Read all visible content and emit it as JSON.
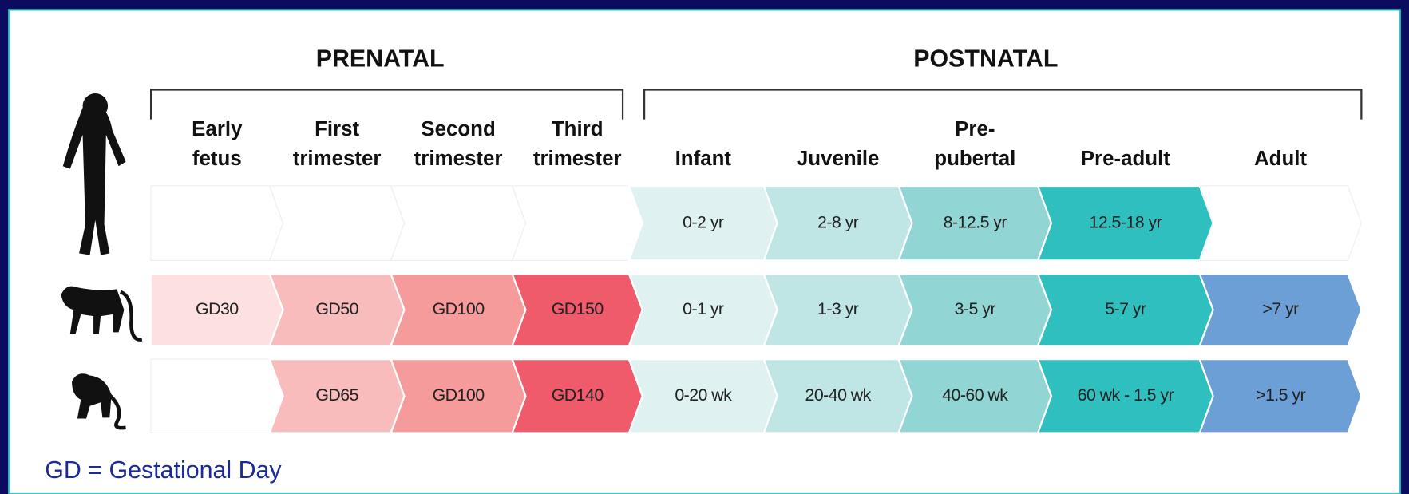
{
  "header": {
    "groups": [
      "PRENATAL",
      "POSTNATAL"
    ]
  },
  "columns": [
    [
      "Early",
      "fetus"
    ],
    [
      "First",
      "trimester"
    ],
    [
      "Second",
      "trimester"
    ],
    [
      "Third",
      "trimester"
    ],
    [
      "Infant"
    ],
    [
      "Juvenile"
    ],
    [
      "Pre-",
      "pubertal"
    ],
    [
      "Pre-adult"
    ],
    [
      "Adult"
    ]
  ],
  "rows": [
    [
      null,
      null,
      null,
      null,
      "0-2 yr",
      "2-8 yr",
      "8-12.5 yr",
      "12.5-18 yr",
      null
    ],
    [
      "GD30",
      "GD50",
      "GD100",
      "GD150",
      "0-1 yr",
      "1-3 yr",
      "3-5 yr",
      "5-7 yr",
      ">7 yr"
    ],
    [
      null,
      "GD65",
      "GD100",
      "GD140",
      "0-20 wk",
      "20-40 wk",
      "40-60 wk",
      "60 wk - 1.5 yr",
      ">1.5 yr"
    ]
  ],
  "footnote": "GD = Gestational Day"
}
